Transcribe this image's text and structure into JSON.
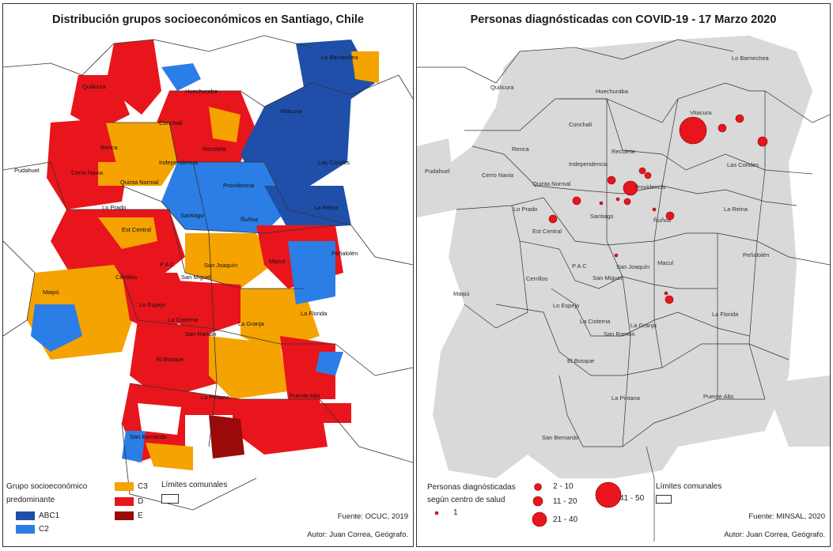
{
  "left_panel": {
    "title": "Distribución grupos socioeconómicos en Santiago, Chile",
    "legend": {
      "heading_line1": "Grupo socioeconómico",
      "heading_line2": "predominante",
      "items": [
        {
          "label": "ABC1",
          "color": "#1f4fa8"
        },
        {
          "label": "C2",
          "color": "#2b7ee6"
        },
        {
          "label": "C3",
          "color": "#f5a300"
        },
        {
          "label": "D",
          "color": "#e8151c"
        },
        {
          "label": "E",
          "color": "#9b0a0a"
        }
      ],
      "boundary_label": "Límites comunales"
    },
    "source": "Fuente: OCUC, 2019",
    "author": "Autor: Juan Correa, Geógrafo.",
    "communes": [
      "Lo Barnechea",
      "Quilicura",
      "Huechuraba",
      "Vitacura",
      "Conchalí",
      "Renca",
      "Recoleta",
      "Las Condes",
      "Independencia",
      "Pudahuel",
      "Cerro Navia",
      "Providencia",
      "Quinta Normal",
      "La Reina",
      "Lo Prado",
      "Santiago",
      "Ñuñoa",
      "Est Central",
      "Peñalolén",
      "P A C",
      "San Joaquín",
      "Macul",
      "Cerrillos",
      "San Miguel",
      "Maipú",
      "Lo Espejo",
      "La Florida",
      "La Cisterna",
      "La Granja",
      "San Ramón",
      "El Bosque",
      "La Pintana",
      "Puente Alto",
      "San Bernardo"
    ]
  },
  "right_panel": {
    "title": "Personas diagnósticadas con COVID-19  -  17 Marzo 2020",
    "legend": {
      "heading_line1": "Personas diagnósticadas",
      "heading_line2": "según centro de salud",
      "sizes": [
        "1",
        "2 - 10",
        "11 - 20",
        "21 - 40",
        "41 - 50"
      ],
      "boundary_label": "Límites comunales"
    },
    "source": "Fuente: MINSAL, 2020",
    "author": "Autor: Juan Correa, Geógrafo.",
    "communes": [
      "Lo Barnechea",
      "Quilicura",
      "Huechuraba",
      "Vitacura",
      "Conchalí",
      "Renca",
      "Recoleta",
      "Las Condes",
      "Independencia",
      "Pudahuel",
      "Cerro Navia",
      "Providencia",
      "Quinta Normal",
      "La Reina",
      "Lo Prado",
      "Santiago",
      "Ñuñoa",
      "Est Central",
      "Peñalolén",
      "P A C",
      "San Joaquín",
      "Macul",
      "Cerrillos",
      "San Miguel",
      "Maipú",
      "Lo Espejo",
      "La Florida",
      "La Cisterna",
      "San Ramon",
      "La Granja",
      "El Bosque",
      "La Pintana",
      "Puente Alto",
      "San Bernardo"
    ]
  },
  "colors": {
    "boundary": "#333333",
    "urban_gray": "#d9d9d9",
    "covid": "#e8151c"
  }
}
